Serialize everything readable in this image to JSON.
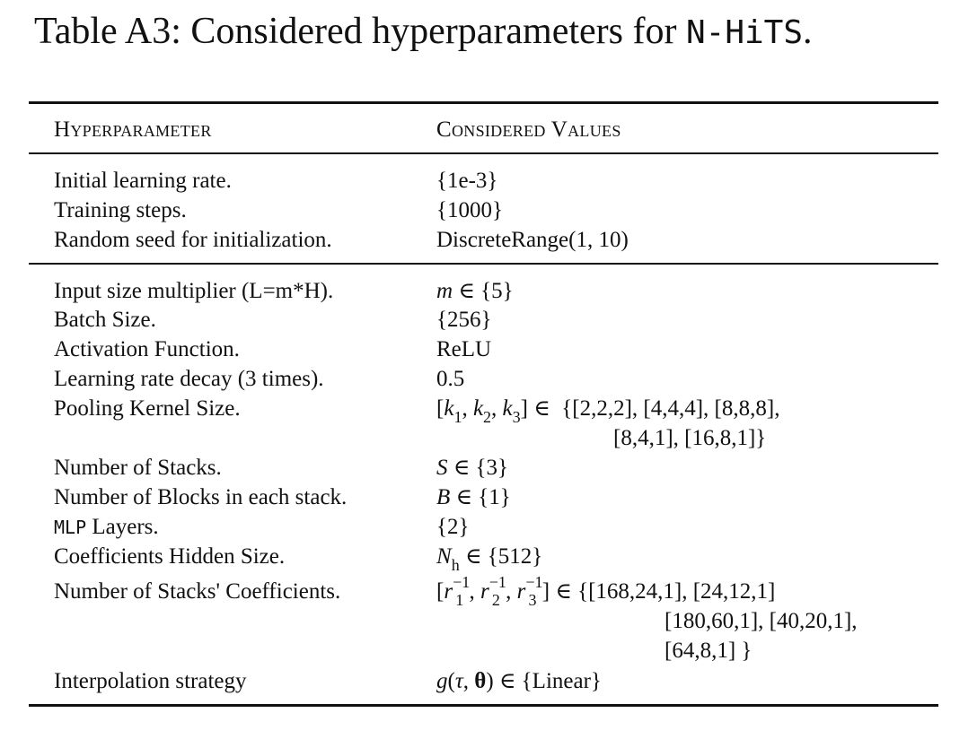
{
  "caption": {
    "prefix": "Table A3: Considered hyperparameters for ",
    "model": "N-HiTS",
    "suffix": "."
  },
  "table": {
    "headers": [
      "Hyperparameter",
      "Considered Values"
    ],
    "group1": [
      {
        "param": "Initial learning rate.",
        "value": "{1e-3}"
      },
      {
        "param": "Training steps.",
        "value": "{1000}"
      },
      {
        "param": "Random seed for initialization.",
        "value": "DiscreteRange(1, 10)"
      }
    ],
    "group2": [
      {
        "param": "Input size multiplier (L=m*H).",
        "value": {
          "var": "m",
          "rest": " ∈ {5}"
        }
      },
      {
        "param": "Batch Size.",
        "value": "{256}"
      },
      {
        "param": "Activation Function.",
        "value": "ReLU"
      },
      {
        "param": "Learning rate decay (3 times).",
        "value": "0.5"
      },
      {
        "param": "Pooling Kernel Size.",
        "value": {
          "line1": "{[2,2,2], [4,4,4], [8,8,8],",
          "line2": "[8,4,1], [16,8,1]}"
        }
      },
      {
        "param": "Number of Stacks.",
        "value": {
          "var": "S",
          "rest": " ∈ {3}"
        }
      },
      {
        "param": "Number of Blocks in each stack.",
        "value": {
          "var": "B",
          "rest": " ∈ {1}"
        }
      },
      {
        "param": {
          "mono": "MLP",
          "rest": " Layers."
        },
        "value": "{2}"
      },
      {
        "param": "Coefficients Hidden Size.",
        "value": {
          "var": "N",
          "sub": "h",
          "rest": " ∈ {512}"
        }
      },
      {
        "param": "Number of Stacks' Coefficients.",
        "value": {
          "line1": "∈ {[168,24,1], [24,12,1]",
          "line2": "[180,60,1], [40,20,1],",
          "line3": "[64,8,1] }"
        }
      },
      {
        "param": "Interpolation strategy",
        "value": {
          "rest": " ∈ {Linear}"
        }
      }
    ]
  }
}
